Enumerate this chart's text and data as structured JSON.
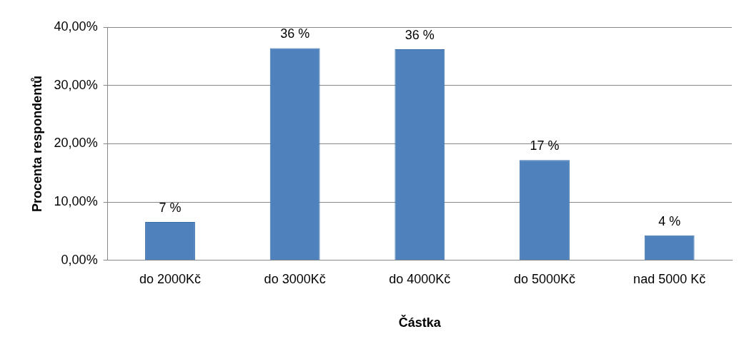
{
  "chart_data": {
    "type": "bar",
    "xlabel": "Částka",
    "ylabel": "Procenta respondentů",
    "categories": [
      "do 2000Kč",
      "do 3000Kč",
      "do 4000Kč",
      "do 5000Kč",
      "nad 5000 Kč"
    ],
    "values": [
      6.6,
      36.4,
      36.2,
      17.2,
      4.3
    ],
    "value_labels": [
      "7 %",
      "36 %",
      "36 %",
      "17 %",
      "4 %"
    ],
    "color": "#4f81bd",
    "ylim": [
      0,
      40
    ],
    "yticks": [
      {
        "value": 0,
        "label": "0,00%"
      },
      {
        "value": 10,
        "label": "10,00%"
      },
      {
        "value": 20,
        "label": "20,00%"
      },
      {
        "value": 30,
        "label": "30,00%"
      },
      {
        "value": 40,
        "label": "40,00%"
      }
    ],
    "grid": "y",
    "legend": false
  }
}
